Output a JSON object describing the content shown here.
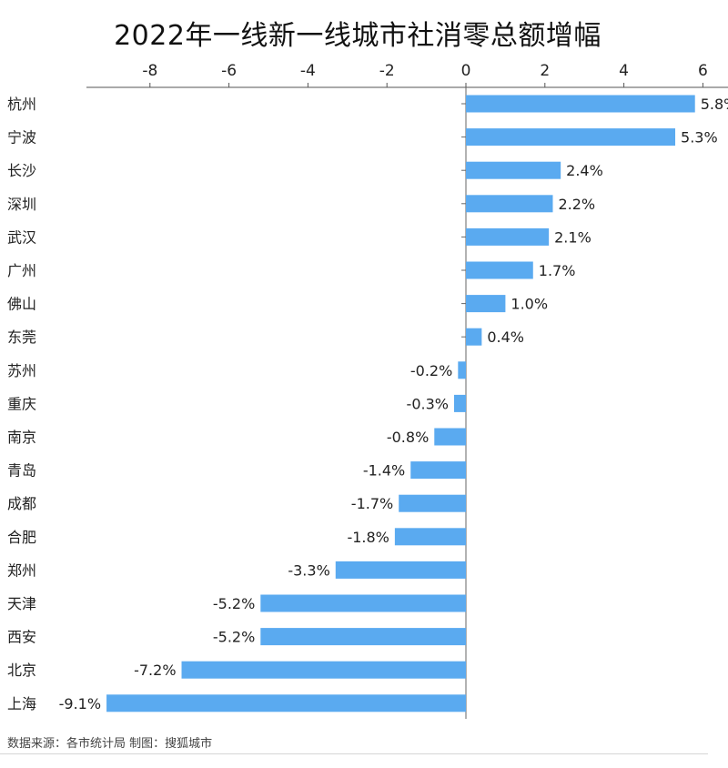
{
  "chart_data": {
    "type": "bar",
    "orientation": "horizontal",
    "title": "2022年一线新一线城市社消零总额增幅",
    "categories": [
      "杭州",
      "宁波",
      "长沙",
      "深圳",
      "武汉",
      "广州",
      "佛山",
      "东莞",
      "苏州",
      "重庆",
      "南京",
      "青岛",
      "成都",
      "合肥",
      "郑州",
      "天津",
      "西安",
      "北京",
      "上海"
    ],
    "values": [
      5.8,
      5.3,
      2.4,
      2.2,
      2.1,
      1.7,
      1.0,
      0.4,
      -0.2,
      -0.3,
      -0.8,
      -1.4,
      -1.7,
      -1.8,
      -3.3,
      -5.2,
      -5.2,
      -7.2,
      -9.1
    ],
    "value_labels": [
      "5.8%",
      "5.3%",
      "2.4%",
      "2.2%",
      "2.1%",
      "1.7%",
      "1.0%",
      "0.4%",
      "-0.2%",
      "-0.3%",
      "-0.8%",
      "-1.4%",
      "-1.7%",
      "-1.8%",
      "-3.3%",
      "-5.2%",
      "-5.2%",
      "-7.2%",
      "-9.1%"
    ],
    "xticks": [
      -8,
      -6,
      -4,
      -2,
      0,
      2,
      4,
      6
    ],
    "xlim": [
      -9.6,
      6.0
    ],
    "axis_position": "top",
    "grid": false,
    "legend": "none",
    "bar_color": "#5aaaf0"
  },
  "source_note": "数据来源：各市统计局 制图：搜狐城市"
}
